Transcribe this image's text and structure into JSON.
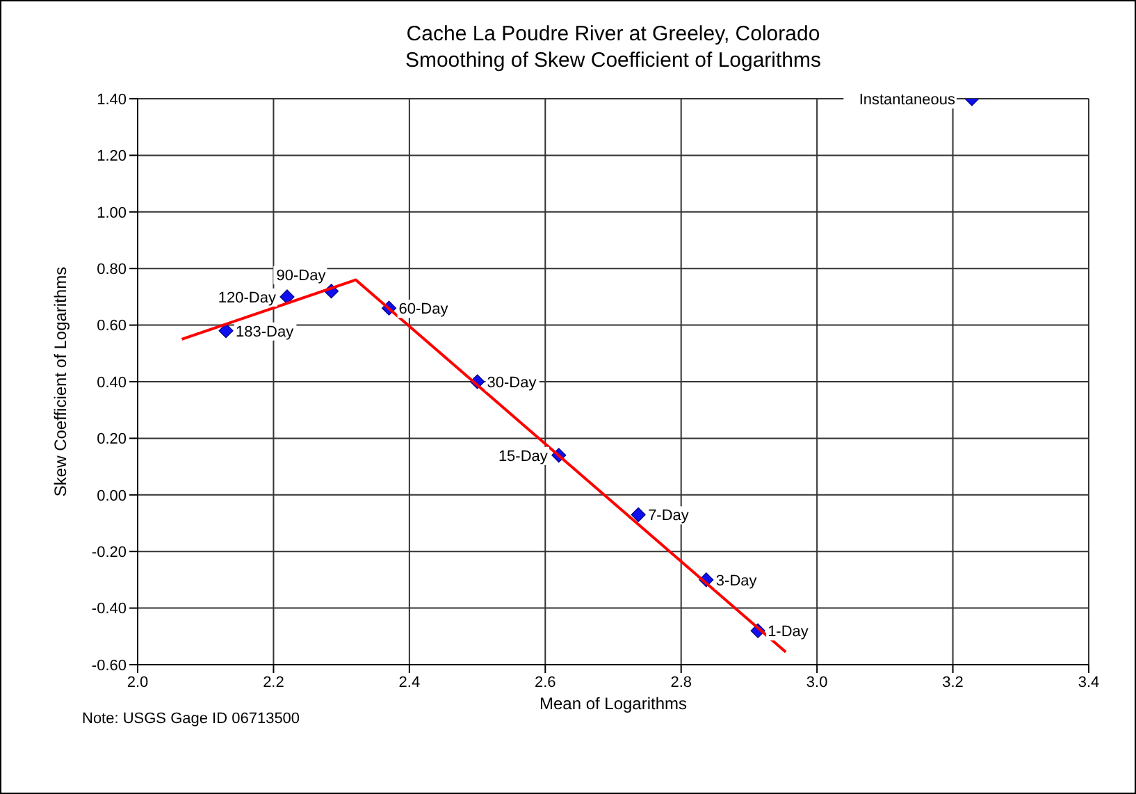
{
  "chart_data": {
    "type": "scatter",
    "title": "Cache La Poudre River at Greeley, Colorado",
    "subtitle": "Smoothing of Skew Coefficient of Logarithms",
    "xlabel": "Mean of Logarithms",
    "ylabel": "Skew Coefficient of Logarithms",
    "xlim": [
      2.0,
      3.4
    ],
    "xticks": [
      {
        "value": 2.0,
        "label": "2.0"
      },
      {
        "value": 2.2,
        "label": "2.2"
      },
      {
        "value": 2.4,
        "label": "2.4"
      },
      {
        "value": 2.6,
        "label": "2.6"
      },
      {
        "value": 2.8,
        "label": "2.8"
      },
      {
        "value": 3.0,
        "label": "3.0"
      },
      {
        "value": 3.2,
        "label": "3.2"
      },
      {
        "value": 3.4,
        "label": "3.4"
      }
    ],
    "ylim": [
      -0.6,
      1.4
    ],
    "yticks": [
      {
        "value": -0.6,
        "label": "-0.60"
      },
      {
        "value": -0.4,
        "label": "-0.40"
      },
      {
        "value": -0.2,
        "label": "-0.20"
      },
      {
        "value": 0,
        "label": "0.00"
      },
      {
        "value": 0.2,
        "label": "0.20"
      },
      {
        "value": 0.4,
        "label": "0.40"
      },
      {
        "value": 0.6,
        "label": "0.60"
      },
      {
        "value": 0.8,
        "label": "0.80"
      },
      {
        "value": 1.0,
        "label": "1.00"
      },
      {
        "value": 1.2,
        "label": "1.20"
      },
      {
        "value": 1.4,
        "label": "1.40"
      }
    ],
    "grid": true,
    "marker": "diamond",
    "legend": false,
    "series": [
      {
        "color": "#1010ee",
        "x": [
          2.13,
          2.22,
          2.285,
          2.37,
          2.5,
          2.62,
          2.737,
          2.837,
          2.913,
          3.228
        ],
        "values": [
          0.58,
          0.7,
          0.72,
          0.66,
          0.4,
          0.14,
          -0.07,
          -0.3,
          -0.48,
          1.4
        ]
      },
      {
        "type": "line",
        "marker": "none",
        "color": "#ff0000",
        "x": [
          2.065,
          2.321,
          2.954
        ],
        "values": [
          0.55,
          0.76,
          -0.555
        ]
      }
    ],
    "annotations": [
      {
        "text": "183-Day",
        "x": 2.13,
        "y": 0.58
      },
      {
        "text": "120-Day",
        "x": 2.22,
        "y": 0.7
      },
      {
        "text": "90-Day",
        "x": 2.285,
        "y": 0.72
      },
      {
        "text": "60-Day",
        "x": 2.37,
        "y": 0.66
      },
      {
        "text": "30-Day",
        "x": 2.5,
        "y": 0.4
      },
      {
        "text": "15-Day",
        "x": 2.62,
        "y": 0.14
      },
      {
        "text": "7-Day",
        "x": 2.737,
        "y": -0.07
      },
      {
        "text": "3-Day",
        "x": 2.837,
        "y": -0.3
      },
      {
        "text": "1-Day",
        "x": 2.913,
        "y": -0.48
      },
      {
        "text": "Instantaneous",
        "x": 3.228,
        "y": 1.4
      },
      "Note:  USGS Gage ID 06713500"
    ]
  }
}
